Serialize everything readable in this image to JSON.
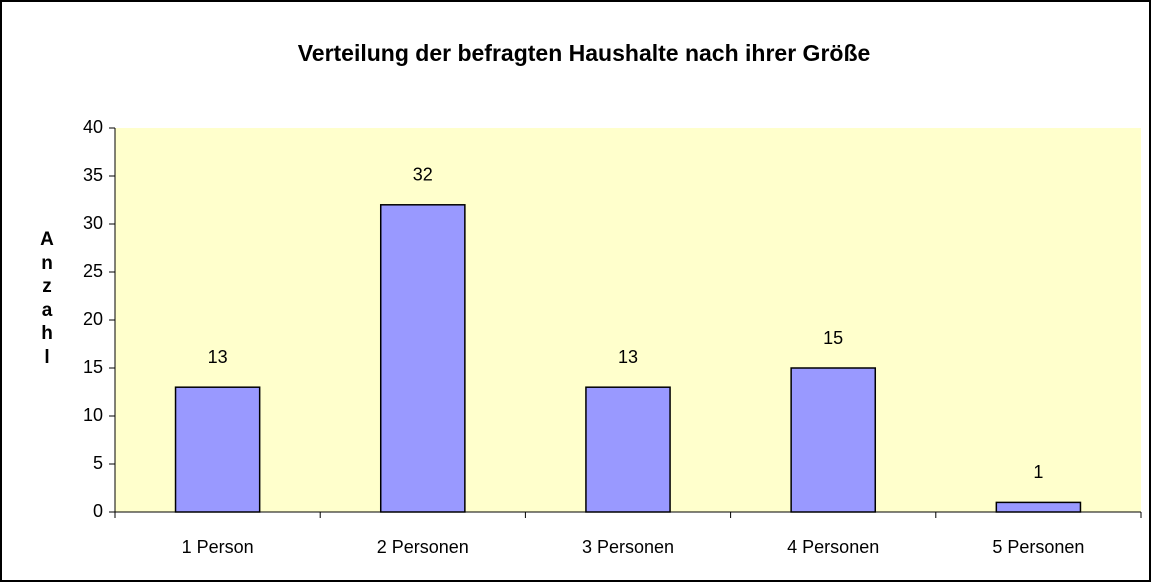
{
  "chart_data": {
    "type": "bar",
    "title": "Verteilung der befragten Haushalte nach ihrer Größe",
    "y_label": "Anzahl",
    "categories": [
      "1 Person",
      "2 Personen",
      "3 Personen",
      "4 Personen",
      "5 Personen"
    ],
    "values": [
      13,
      32,
      13,
      15,
      1
    ],
    "color": "#9999ff",
    "plot_background": "#ffffcc",
    "ylim": [
      0,
      40
    ],
    "yticks": [
      0,
      5,
      10,
      15,
      20,
      25,
      30,
      35,
      40
    ],
    "grid": false
  }
}
